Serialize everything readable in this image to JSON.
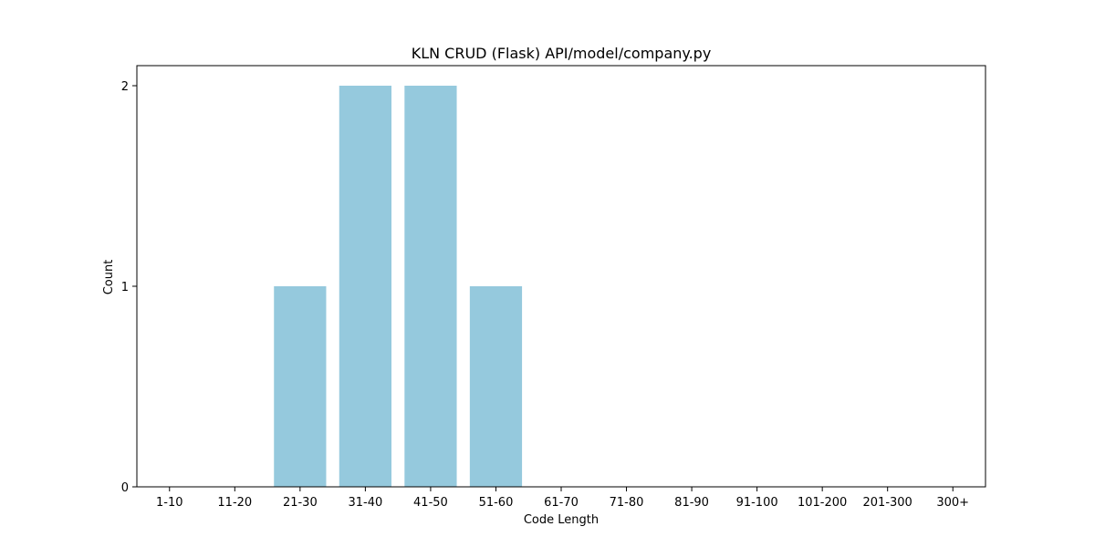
{
  "chart_data": {
    "type": "bar",
    "title": "KLN CRUD (Flask) API/model/company.py",
    "xlabel": "Code Length",
    "ylabel": "Count",
    "categories": [
      "1-10",
      "11-20",
      "21-30",
      "31-40",
      "41-50",
      "51-60",
      "61-70",
      "71-80",
      "81-90",
      "91-100",
      "101-200",
      "201-300",
      "300+"
    ],
    "values": [
      0,
      0,
      1,
      2,
      2,
      1,
      0,
      0,
      0,
      0,
      0,
      0,
      0
    ],
    "ylim": [
      0,
      2.1
    ],
    "yticks": [
      0,
      1,
      2
    ],
    "grid": false,
    "bar_color": "#95c9dd"
  }
}
